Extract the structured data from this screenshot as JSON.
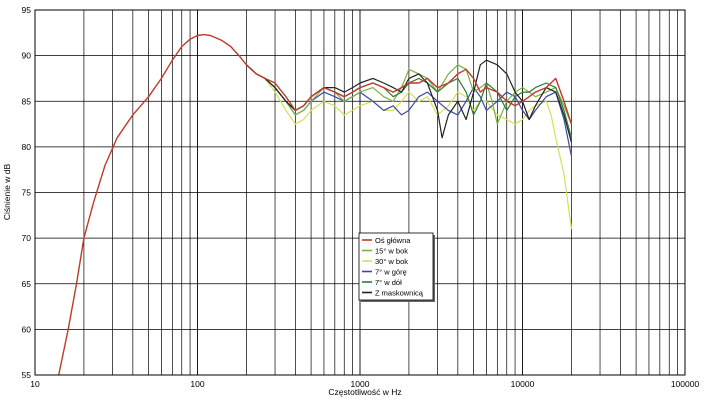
{
  "chart_data": {
    "type": "line",
    "title": "",
    "xlabel": "Częstotliwość w Hz",
    "ylabel": "Ciśnienie w dB",
    "xscale": "log",
    "xlim": [
      10,
      100000
    ],
    "ylim": [
      55,
      95
    ],
    "x_tick_labels": [
      "10",
      "100",
      "1000",
      "10000",
      "100000"
    ],
    "y_tick_labels": [
      "55",
      "60",
      "65",
      "70",
      "75",
      "80",
      "85",
      "90",
      "95"
    ],
    "grid": true,
    "legend_position": "center",
    "series": [
      {
        "name": "Oś główna",
        "color": "#c0392b",
        "points": [
          [
            14,
            55
          ],
          [
            16,
            60
          ],
          [
            18,
            65
          ],
          [
            20,
            70
          ],
          [
            23,
            74
          ],
          [
            27,
            78
          ],
          [
            32,
            81
          ],
          [
            40,
            83.5
          ],
          [
            50,
            85.5
          ],
          [
            60,
            87.5
          ],
          [
            70,
            89.5
          ],
          [
            80,
            91
          ],
          [
            90,
            91.8
          ],
          [
            100,
            92.2
          ],
          [
            110,
            92.3
          ],
          [
            120,
            92.2
          ],
          [
            140,
            91.7
          ],
          [
            160,
            91
          ],
          [
            180,
            90
          ],
          [
            200,
            89
          ],
          [
            230,
            88
          ],
          [
            260,
            87.5
          ],
          [
            300,
            87
          ],
          [
            350,
            85.5
          ],
          [
            400,
            84
          ],
          [
            450,
            84.5
          ],
          [
            500,
            85.5
          ],
          [
            600,
            86.5
          ],
          [
            700,
            86
          ],
          [
            800,
            85.5
          ],
          [
            900,
            86
          ],
          [
            1000,
            86.5
          ],
          [
            1200,
            87
          ],
          [
            1400,
            86.5
          ],
          [
            1600,
            86
          ],
          [
            1800,
            86.5
          ],
          [
            2000,
            87
          ],
          [
            2300,
            87
          ],
          [
            2600,
            87.5
          ],
          [
            3000,
            86.5
          ],
          [
            3500,
            87
          ],
          [
            4000,
            88
          ],
          [
            4500,
            88.5
          ],
          [
            5000,
            87.5
          ],
          [
            5500,
            86
          ],
          [
            6000,
            86.5
          ],
          [
            7000,
            86
          ],
          [
            8000,
            85
          ],
          [
            9000,
            84.5
          ],
          [
            10000,
            85
          ],
          [
            11000,
            85.5
          ],
          [
            12000,
            86
          ],
          [
            14000,
            86.5
          ],
          [
            16000,
            87.5
          ],
          [
            18000,
            85
          ],
          [
            20000,
            82.5
          ]
        ]
      },
      {
        "name": "15° w bok",
        "color": "#7cb342",
        "points": [
          [
            200,
            89
          ],
          [
            230,
            88
          ],
          [
            260,
            87.5
          ],
          [
            300,
            86.5
          ],
          [
            350,
            85
          ],
          [
            400,
            83.5
          ],
          [
            450,
            84
          ],
          [
            500,
            85
          ],
          [
            600,
            86.5
          ],
          [
            700,
            86
          ],
          [
            800,
            85
          ],
          [
            900,
            85.5
          ],
          [
            1000,
            86
          ],
          [
            1200,
            86.5
          ],
          [
            1400,
            85.5
          ],
          [
            1600,
            85
          ],
          [
            1800,
            86.5
          ],
          [
            2000,
            88.5
          ],
          [
            2300,
            88
          ],
          [
            2600,
            87.5
          ],
          [
            3000,
            86
          ],
          [
            3500,
            88
          ],
          [
            4000,
            89
          ],
          [
            4500,
            88.5
          ],
          [
            5000,
            86
          ],
          [
            5500,
            86.5
          ],
          [
            6000,
            87
          ],
          [
            6500,
            85
          ],
          [
            7000,
            82.5
          ],
          [
            8000,
            85
          ],
          [
            9000,
            86
          ],
          [
            10000,
            86.5
          ],
          [
            11000,
            86
          ],
          [
            12000,
            85.5
          ],
          [
            14000,
            86
          ],
          [
            16000,
            86.5
          ],
          [
            18000,
            84.5
          ],
          [
            20000,
            82.5
          ]
        ]
      },
      {
        "name": "30° w bok",
        "color": "#d4e157",
        "points": [
          [
            200,
            89
          ],
          [
            230,
            88
          ],
          [
            260,
            87.5
          ],
          [
            300,
            86
          ],
          [
            350,
            84
          ],
          [
            400,
            82.5
          ],
          [
            450,
            83
          ],
          [
            500,
            84
          ],
          [
            600,
            85
          ],
          [
            700,
            84.5
          ],
          [
            800,
            83.5
          ],
          [
            900,
            84
          ],
          [
            1000,
            84.5
          ],
          [
            1200,
            85
          ],
          [
            1400,
            84
          ],
          [
            1600,
            84
          ],
          [
            1800,
            85
          ],
          [
            2000,
            86
          ],
          [
            2300,
            85
          ],
          [
            2600,
            85.5
          ],
          [
            3000,
            83.5
          ],
          [
            3500,
            84.5
          ],
          [
            4000,
            86
          ],
          [
            4500,
            85.5
          ],
          [
            5000,
            84
          ],
          [
            5500,
            85
          ],
          [
            6000,
            85
          ],
          [
            7000,
            83.5
          ],
          [
            8000,
            83
          ],
          [
            9000,
            82.5
          ],
          [
            10000,
            83
          ],
          [
            11000,
            84
          ],
          [
            12000,
            84.5
          ],
          [
            14000,
            85
          ],
          [
            15000,
            83.5
          ],
          [
            16000,
            81
          ],
          [
            18000,
            77
          ],
          [
            20000,
            71
          ]
        ]
      },
      {
        "name": "7° w górę",
        "color": "#3949ab",
        "points": [
          [
            200,
            89
          ],
          [
            230,
            88
          ],
          [
            260,
            87.5
          ],
          [
            300,
            86.5
          ],
          [
            350,
            85
          ],
          [
            400,
            83.5
          ],
          [
            450,
            84
          ],
          [
            500,
            85
          ],
          [
            600,
            86
          ],
          [
            700,
            85.5
          ],
          [
            800,
            85
          ],
          [
            900,
            85.5
          ],
          [
            1000,
            86
          ],
          [
            1200,
            85
          ],
          [
            1400,
            84
          ],
          [
            1600,
            84.5
          ],
          [
            1800,
            83.5
          ],
          [
            2000,
            84
          ],
          [
            2300,
            85.5
          ],
          [
            2600,
            86
          ],
          [
            3000,
            85
          ],
          [
            3500,
            84
          ],
          [
            4000,
            83.5
          ],
          [
            4500,
            85
          ],
          [
            5000,
            86.5
          ],
          [
            5500,
            85.5
          ],
          [
            6000,
            84
          ],
          [
            7000,
            85
          ],
          [
            8000,
            86
          ],
          [
            9000,
            85.5
          ],
          [
            10000,
            84
          ],
          [
            11000,
            83
          ],
          [
            12000,
            84
          ],
          [
            14000,
            85.5
          ],
          [
            16000,
            86
          ],
          [
            18000,
            83
          ],
          [
            20000,
            79
          ]
        ]
      },
      {
        "name": "7° w dół",
        "color": "#2e7d32",
        "points": [
          [
            200,
            89
          ],
          [
            230,
            88
          ],
          [
            260,
            87.5
          ],
          [
            300,
            86.5
          ],
          [
            350,
            85
          ],
          [
            400,
            84
          ],
          [
            450,
            84.5
          ],
          [
            500,
            85.5
          ],
          [
            600,
            86.5
          ],
          [
            700,
            86
          ],
          [
            800,
            85.5
          ],
          [
            900,
            86
          ],
          [
            1000,
            86.5
          ],
          [
            1200,
            87
          ],
          [
            1400,
            86.5
          ],
          [
            1600,
            85.5
          ],
          [
            1800,
            86
          ],
          [
            2000,
            87
          ],
          [
            2300,
            87.5
          ],
          [
            2600,
            87
          ],
          [
            3000,
            86
          ],
          [
            3500,
            87
          ],
          [
            4000,
            87.5
          ],
          [
            4500,
            86
          ],
          [
            5000,
            83.5
          ],
          [
            5500,
            85
          ],
          [
            6000,
            87
          ],
          [
            7000,
            86
          ],
          [
            8000,
            84
          ],
          [
            9000,
            85.5
          ],
          [
            10000,
            86
          ],
          [
            11000,
            86
          ],
          [
            12000,
            86.5
          ],
          [
            14000,
            87
          ],
          [
            16000,
            86.5
          ],
          [
            18000,
            84
          ],
          [
            20000,
            81
          ]
        ]
      },
      {
        "name": "Z maskownicą",
        "color": "#222222",
        "points": [
          [
            200,
            89
          ],
          [
            230,
            88
          ],
          [
            260,
            87.5
          ],
          [
            300,
            86.5
          ],
          [
            350,
            85
          ],
          [
            400,
            84
          ],
          [
            450,
            84.5
          ],
          [
            500,
            85.5
          ],
          [
            600,
            86.5
          ],
          [
            700,
            86.5
          ],
          [
            800,
            86
          ],
          [
            900,
            86.5
          ],
          [
            1000,
            87
          ],
          [
            1200,
            87.5
          ],
          [
            1400,
            87
          ],
          [
            1600,
            86.5
          ],
          [
            1800,
            86
          ],
          [
            2000,
            87.5
          ],
          [
            2300,
            88
          ],
          [
            2600,
            87
          ],
          [
            3000,
            84
          ],
          [
            3200,
            81
          ],
          [
            3500,
            83.5
          ],
          [
            4000,
            85
          ],
          [
            4500,
            83
          ],
          [
            5000,
            86
          ],
          [
            5500,
            89
          ],
          [
            6000,
            89.5
          ],
          [
            7000,
            89
          ],
          [
            8000,
            88
          ],
          [
            9000,
            86
          ],
          [
            10000,
            85
          ],
          [
            11000,
            83
          ],
          [
            12000,
            84.5
          ],
          [
            14000,
            86.5
          ],
          [
            16000,
            86
          ],
          [
            18000,
            83.5
          ],
          [
            20000,
            80.5
          ]
        ]
      }
    ]
  }
}
